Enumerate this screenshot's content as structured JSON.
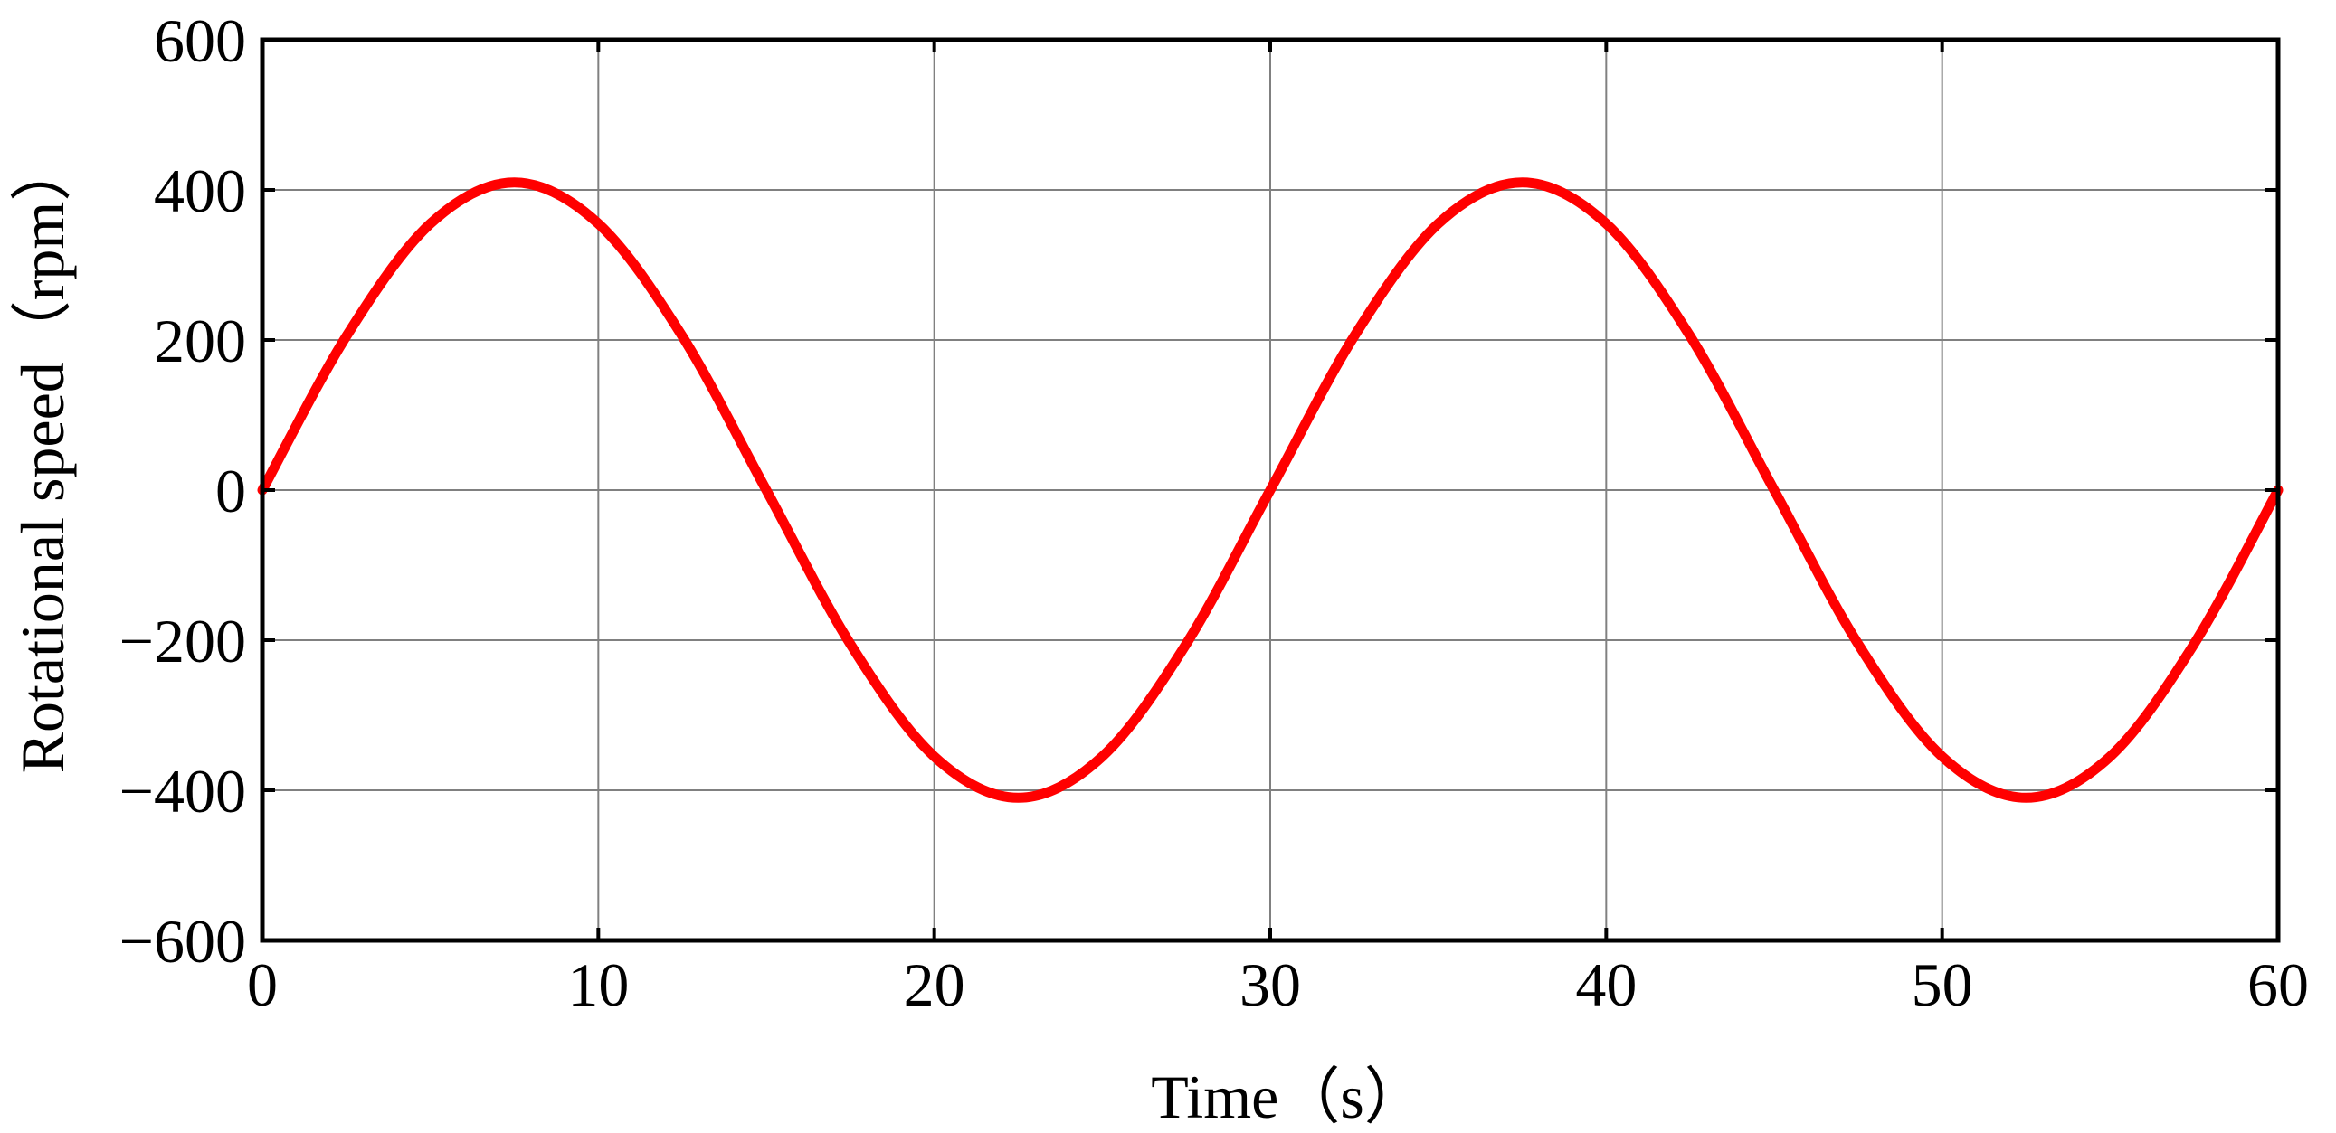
{
  "chart_data": {
    "type": "line",
    "title": "",
    "xlabel": "Time（s）",
    "ylabel": "Rotational speed（rpm）",
    "xlim": [
      0,
      60
    ],
    "ylim": [
      -600,
      600
    ],
    "x_ticks": [
      0,
      10,
      20,
      30,
      40,
      50,
      60
    ],
    "y_ticks": [
      600,
      400,
      200,
      0,
      -200,
      -400,
      -600
    ],
    "x_tick_labels": [
      "0",
      "10",
      "20",
      "30",
      "40",
      "50",
      "60"
    ],
    "y_tick_labels": [
      "600",
      "400",
      "200",
      "0",
      "−200",
      "−400",
      "−600"
    ],
    "grid": true,
    "legend": "none",
    "series": [
      {
        "color": "#ff0000",
        "x": [
          0,
          2.5,
          5,
          7.5,
          10,
          12.5,
          15,
          17.5,
          20,
          22.5,
          25,
          27.5,
          30,
          32.5,
          35,
          37.5,
          40,
          42.5,
          45,
          47.5,
          50,
          52.5,
          55,
          57.5,
          60
        ],
        "y": [
          0,
          205,
          355,
          410,
          355,
          205,
          0,
          -205,
          -355,
          -410,
          -355,
          -205,
          0,
          205,
          355,
          410,
          355,
          205,
          0,
          -205,
          -355,
          -410,
          -355,
          -205,
          0
        ]
      }
    ]
  },
  "colors": {
    "line": "#ff0000",
    "grid": "#808080",
    "frame": "#000000"
  }
}
